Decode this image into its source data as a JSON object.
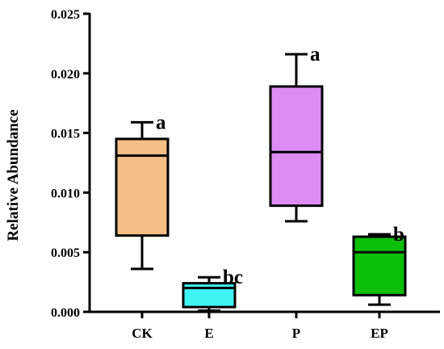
{
  "chart_data": {
    "type": "box",
    "title": "",
    "xlabel": "",
    "ylabel": "Relative Abundance",
    "ylim": [
      0,
      0.025
    ],
    "y_ticks": [
      "0.000",
      "0.005",
      "0.010",
      "0.015",
      "0.020",
      "0.025"
    ],
    "grid": false,
    "categories": [
      "CK",
      "E",
      "P",
      "EP"
    ],
    "boxes": [
      {
        "category": "CK",
        "min": 0.0036,
        "q1": 0.0064,
        "median": 0.0131,
        "q3": 0.0145,
        "max": 0.0159,
        "significance": "a",
        "color": "#f4be86"
      },
      {
        "category": "E",
        "min": 0.0001,
        "q1": 0.0004,
        "median": 0.002,
        "q3": 0.0024,
        "max": 0.0029,
        "significance": "bc",
        "color": "#3ff3f3"
      },
      {
        "category": "P",
        "min": 0.0076,
        "q1": 0.0089,
        "median": 0.0134,
        "q3": 0.0189,
        "max": 0.0216,
        "significance": "a",
        "color": "#dc8cf3"
      },
      {
        "category": "EP",
        "min": 0.0006,
        "q1": 0.0014,
        "median": 0.005,
        "q3": 0.0063,
        "max": 0.0065,
        "significance": "b",
        "color": "#0bbf0b"
      }
    ]
  }
}
